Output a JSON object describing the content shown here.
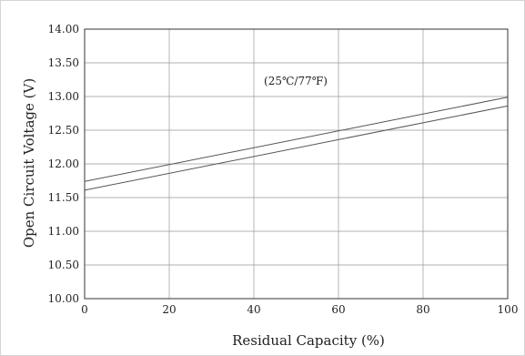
{
  "chart_data": {
    "type": "line",
    "xlabel": "Residual Capacity (%)",
    "ylabel": "Open Circuit Voltage (V)",
    "annotation": "(25℃/77℉)",
    "xlim": [
      0,
      100
    ],
    "ylim": [
      10.0,
      14.0
    ],
    "x_ticks": [
      "0",
      "20",
      "40",
      "60",
      "80",
      "100"
    ],
    "y_ticks": [
      "10.00",
      "10.50",
      "11.00",
      "11.50",
      "12.00",
      "12.50",
      "13.00",
      "13.50",
      "14.00"
    ],
    "grid": true,
    "series": [
      {
        "x": [
          0,
          100
        ],
        "values": [
          11.74,
          12.99
        ]
      },
      {
        "x": [
          0,
          100
        ],
        "values": [
          11.61,
          12.86
        ]
      }
    ],
    "colors": {
      "line": "#555555",
      "grid": "#999999",
      "axis": "#333333"
    }
  }
}
